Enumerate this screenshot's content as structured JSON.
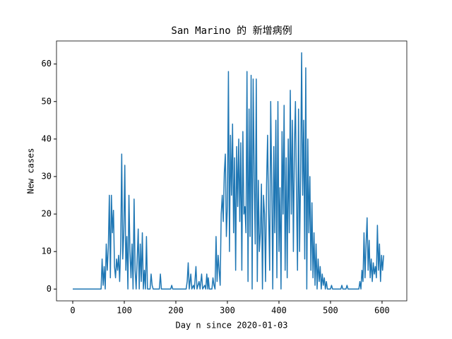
{
  "chart_data": {
    "type": "line",
    "title": "San Marino 的 新增病例",
    "xlabel": "Day n since 2020-01-03",
    "ylabel": "New cases",
    "x": [
      0,
      55,
      57,
      59,
      61,
      63,
      65,
      67,
      69,
      71,
      73,
      75,
      77,
      79,
      81,
      83,
      85,
      87,
      89,
      91,
      93,
      95,
      97,
      99,
      101,
      103,
      105,
      107,
      109,
      111,
      113,
      115,
      117,
      119,
      121,
      123,
      125,
      127,
      129,
      131,
      133,
      135,
      137,
      139,
      141,
      143,
      145,
      150,
      152,
      154,
      156,
      168,
      170,
      172,
      190,
      192,
      194,
      220,
      222,
      224,
      226,
      229,
      231,
      234,
      236,
      239,
      241,
      245,
      247,
      250,
      252,
      256,
      258,
      260,
      262,
      263,
      265,
      268,
      270,
      272,
      274,
      276,
      278,
      280,
      282,
      284,
      286,
      288,
      290,
      292,
      294,
      296,
      298,
      300,
      302,
      304,
      306,
      308,
      310,
      312,
      314,
      316,
      318,
      320,
      322,
      324,
      326,
      328,
      330,
      332,
      334,
      336,
      338,
      340,
      342,
      344,
      346,
      348,
      350,
      352,
      354,
      356,
      358,
      360,
      362,
      364,
      366,
      368,
      370,
      372,
      374,
      376,
      378,
      380,
      382,
      384,
      386,
      388,
      390,
      392,
      394,
      396,
      398,
      400,
      402,
      404,
      406,
      408,
      410,
      412,
      414,
      416,
      418,
      420,
      422,
      424,
      426,
      428,
      430,
      432,
      434,
      436,
      438,
      440,
      442,
      444,
      446,
      448,
      450,
      452,
      454,
      456,
      458,
      460,
      462,
      464,
      466,
      468,
      470,
      472,
      474,
      476,
      478,
      480,
      482,
      484,
      486,
      488,
      490,
      492,
      494,
      500,
      502,
      504,
      520,
      522,
      524,
      530,
      532,
      534,
      555,
      557,
      559,
      561,
      563,
      565,
      567,
      569,
      571,
      573,
      575,
      577,
      579,
      581,
      583,
      585,
      587,
      589,
      591,
      593,
      595,
      597,
      599,
      601,
      603
    ],
    "series": [
      {
        "name": "San Marino",
        "color": "#1f77b4",
        "values": [
          0,
          0,
          8,
          1,
          6,
          0,
          12,
          5,
          11,
          25,
          3,
          25,
          15,
          21,
          6,
          3,
          8,
          5,
          9,
          2,
          11,
          36,
          8,
          15,
          33,
          5,
          14,
          0,
          25,
          10,
          3,
          12,
          0,
          24,
          5,
          0,
          8,
          16,
          0,
          12,
          2,
          15,
          0,
          5,
          0,
          14,
          0,
          0,
          4,
          1,
          0,
          0,
          4,
          0,
          0,
          1,
          0,
          0,
          2,
          7,
          0,
          4,
          0,
          1,
          0,
          6,
          0,
          2,
          0,
          4,
          0,
          1,
          0,
          4,
          0,
          3,
          0,
          0,
          0,
          3,
          1,
          0,
          14,
          2,
          9,
          5,
          1,
          20,
          25,
          18,
          31,
          36,
          14,
          22,
          58,
          10,
          41,
          25,
          44,
          15,
          35,
          5,
          38,
          22,
          40,
          18,
          39,
          5,
          42,
          20,
          22,
          15,
          58,
          2,
          48,
          14,
          57,
          0,
          56,
          30,
          12,
          56,
          2,
          29,
          10,
          15,
          28,
          0,
          25,
          20,
          2,
          28,
          41,
          20,
          5,
          50,
          28,
          0,
          38,
          15,
          45,
          3,
          50,
          10,
          27,
          0,
          42,
          20,
          49,
          5,
          35,
          3,
          40,
          15,
          53,
          20,
          45,
          10,
          38,
          50,
          25,
          5,
          48,
          10,
          30,
          63,
          25,
          45,
          8,
          59,
          0,
          40,
          15,
          30,
          5,
          23,
          3,
          15,
          1,
          12,
          0,
          8,
          2,
          6,
          0,
          4,
          1,
          3,
          0,
          2,
          0,
          0,
          1,
          0,
          0,
          1,
          0,
          0,
          1,
          0,
          0,
          2,
          0,
          5,
          2,
          15,
          3,
          12,
          19,
          5,
          13,
          3,
          8,
          2,
          7,
          4,
          6,
          3,
          17,
          5,
          12,
          2,
          9,
          5,
          9
        ]
      }
    ],
    "xlim": [
      -31.5,
      648
    ],
    "ylim": [
      -3.15,
      66.15
    ],
    "xticks": [
      0,
      100,
      200,
      300,
      400,
      500,
      600
    ],
    "yticks": [
      0,
      10,
      20,
      30,
      40,
      50,
      60
    ]
  }
}
